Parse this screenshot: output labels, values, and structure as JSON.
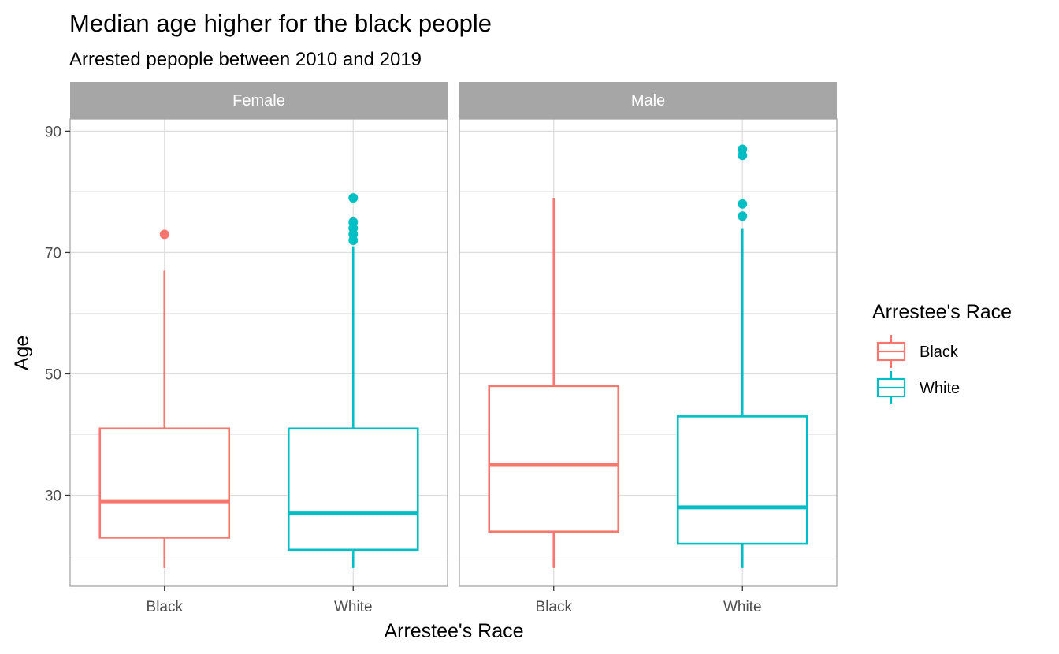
{
  "chart_data": {
    "type": "boxplot",
    "title": "Median age higher for the black people",
    "subtitle": "Arrested pepople between 2010 and 2019",
    "xlabel": "Arrestee's Race",
    "ylabel": "Age",
    "ylim": [
      15,
      92
    ],
    "y_ticks": [
      30,
      50,
      70,
      90
    ],
    "y_minor_ticks": [
      20,
      40,
      60,
      80
    ],
    "categories": [
      "Black",
      "White"
    ],
    "colors": {
      "Black": "#F8766D",
      "White": "#00BFC4"
    },
    "legend": {
      "title": "Arrestee's Race",
      "position": "right",
      "entries": [
        "Black",
        "White"
      ]
    },
    "facets": [
      {
        "label": "Female",
        "boxes": [
          {
            "category": "Black",
            "min": 18,
            "q1": 23,
            "median": 29,
            "q3": 41,
            "max": 67,
            "outliers": [
              73
            ]
          },
          {
            "category": "White",
            "min": 18,
            "q1": 21,
            "median": 27,
            "q3": 41,
            "max": 71,
            "outliers": [
              72,
              73,
              74,
              75,
              79
            ]
          }
        ]
      },
      {
        "label": "Male",
        "boxes": [
          {
            "category": "Black",
            "min": 18,
            "q1": 24,
            "median": 35,
            "q3": 48,
            "max": 79,
            "outliers": []
          },
          {
            "category": "White",
            "min": 18,
            "q1": 22,
            "median": 28,
            "q3": 43,
            "max": 74,
            "outliers": [
              76,
              78,
              86,
              87
            ]
          }
        ]
      }
    ]
  }
}
